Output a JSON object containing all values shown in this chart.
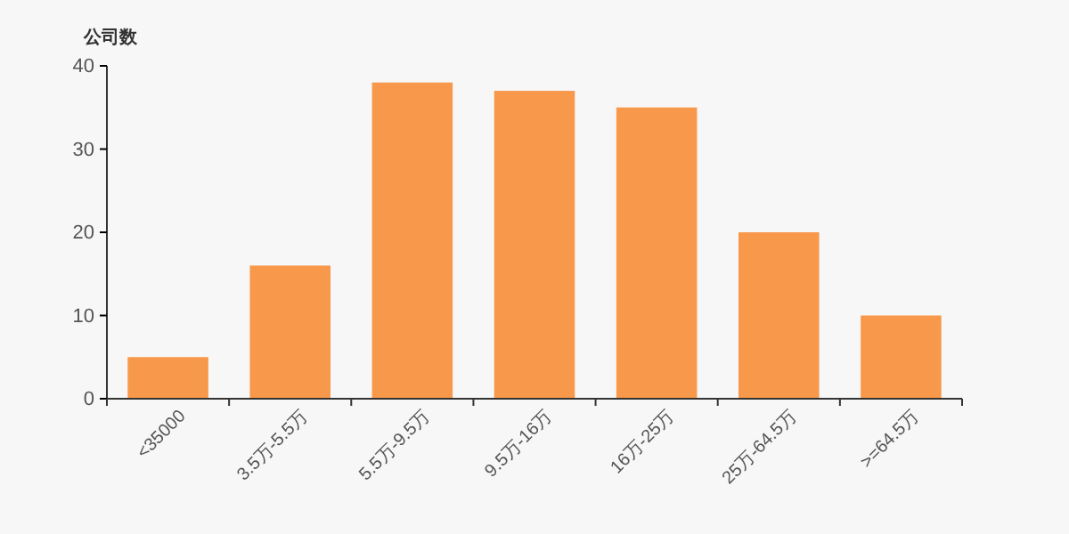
{
  "chart_data": {
    "type": "bar",
    "ylabel": "公司数",
    "categories": [
      "<35000",
      "3.5万-5.5万",
      "5.5万-9.5万",
      "9.5万-16万",
      "16万-25万",
      "25万-64.5万",
      ">=64.5万"
    ],
    "values": [
      5,
      16,
      38,
      37,
      35,
      20,
      10
    ],
    "color": "#f7984a",
    "ylim": [
      0,
      40
    ],
    "yticks": [
      0,
      10,
      20,
      30,
      40
    ],
    "grid": false
  }
}
